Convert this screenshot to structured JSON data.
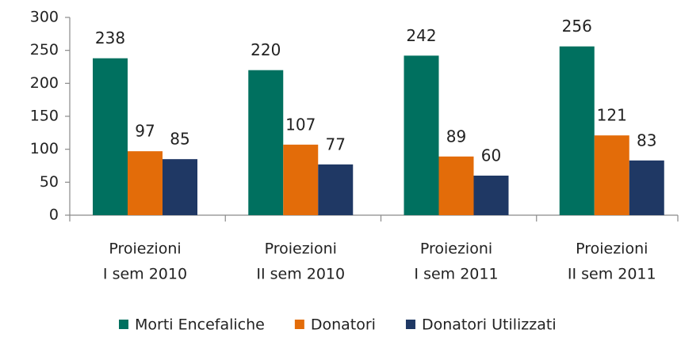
{
  "chart_data": {
    "type": "bar",
    "categories": [
      [
        "Proiezioni",
        "I sem 2010"
      ],
      [
        "Proiezioni",
        "II sem 2010"
      ],
      [
        "Proiezioni",
        "I sem 2011"
      ],
      [
        "Proiezioni",
        "II sem 2011"
      ]
    ],
    "series": [
      {
        "name": "Morti Encefaliche",
        "color": "#00705f",
        "values": [
          238,
          220,
          242,
          256
        ]
      },
      {
        "name": "Donatori",
        "color": "#e36c09",
        "values": [
          97,
          107,
          89,
          121
        ]
      },
      {
        "name": "Donatori Utilizzati",
        "color": "#1f3864",
        "values": [
          85,
          77,
          60,
          83
        ]
      }
    ],
    "ylim": [
      0,
      300
    ],
    "yticks": [
      0,
      50,
      100,
      150,
      200,
      250,
      300
    ],
    "grid": false,
    "legend": "bottom"
  }
}
